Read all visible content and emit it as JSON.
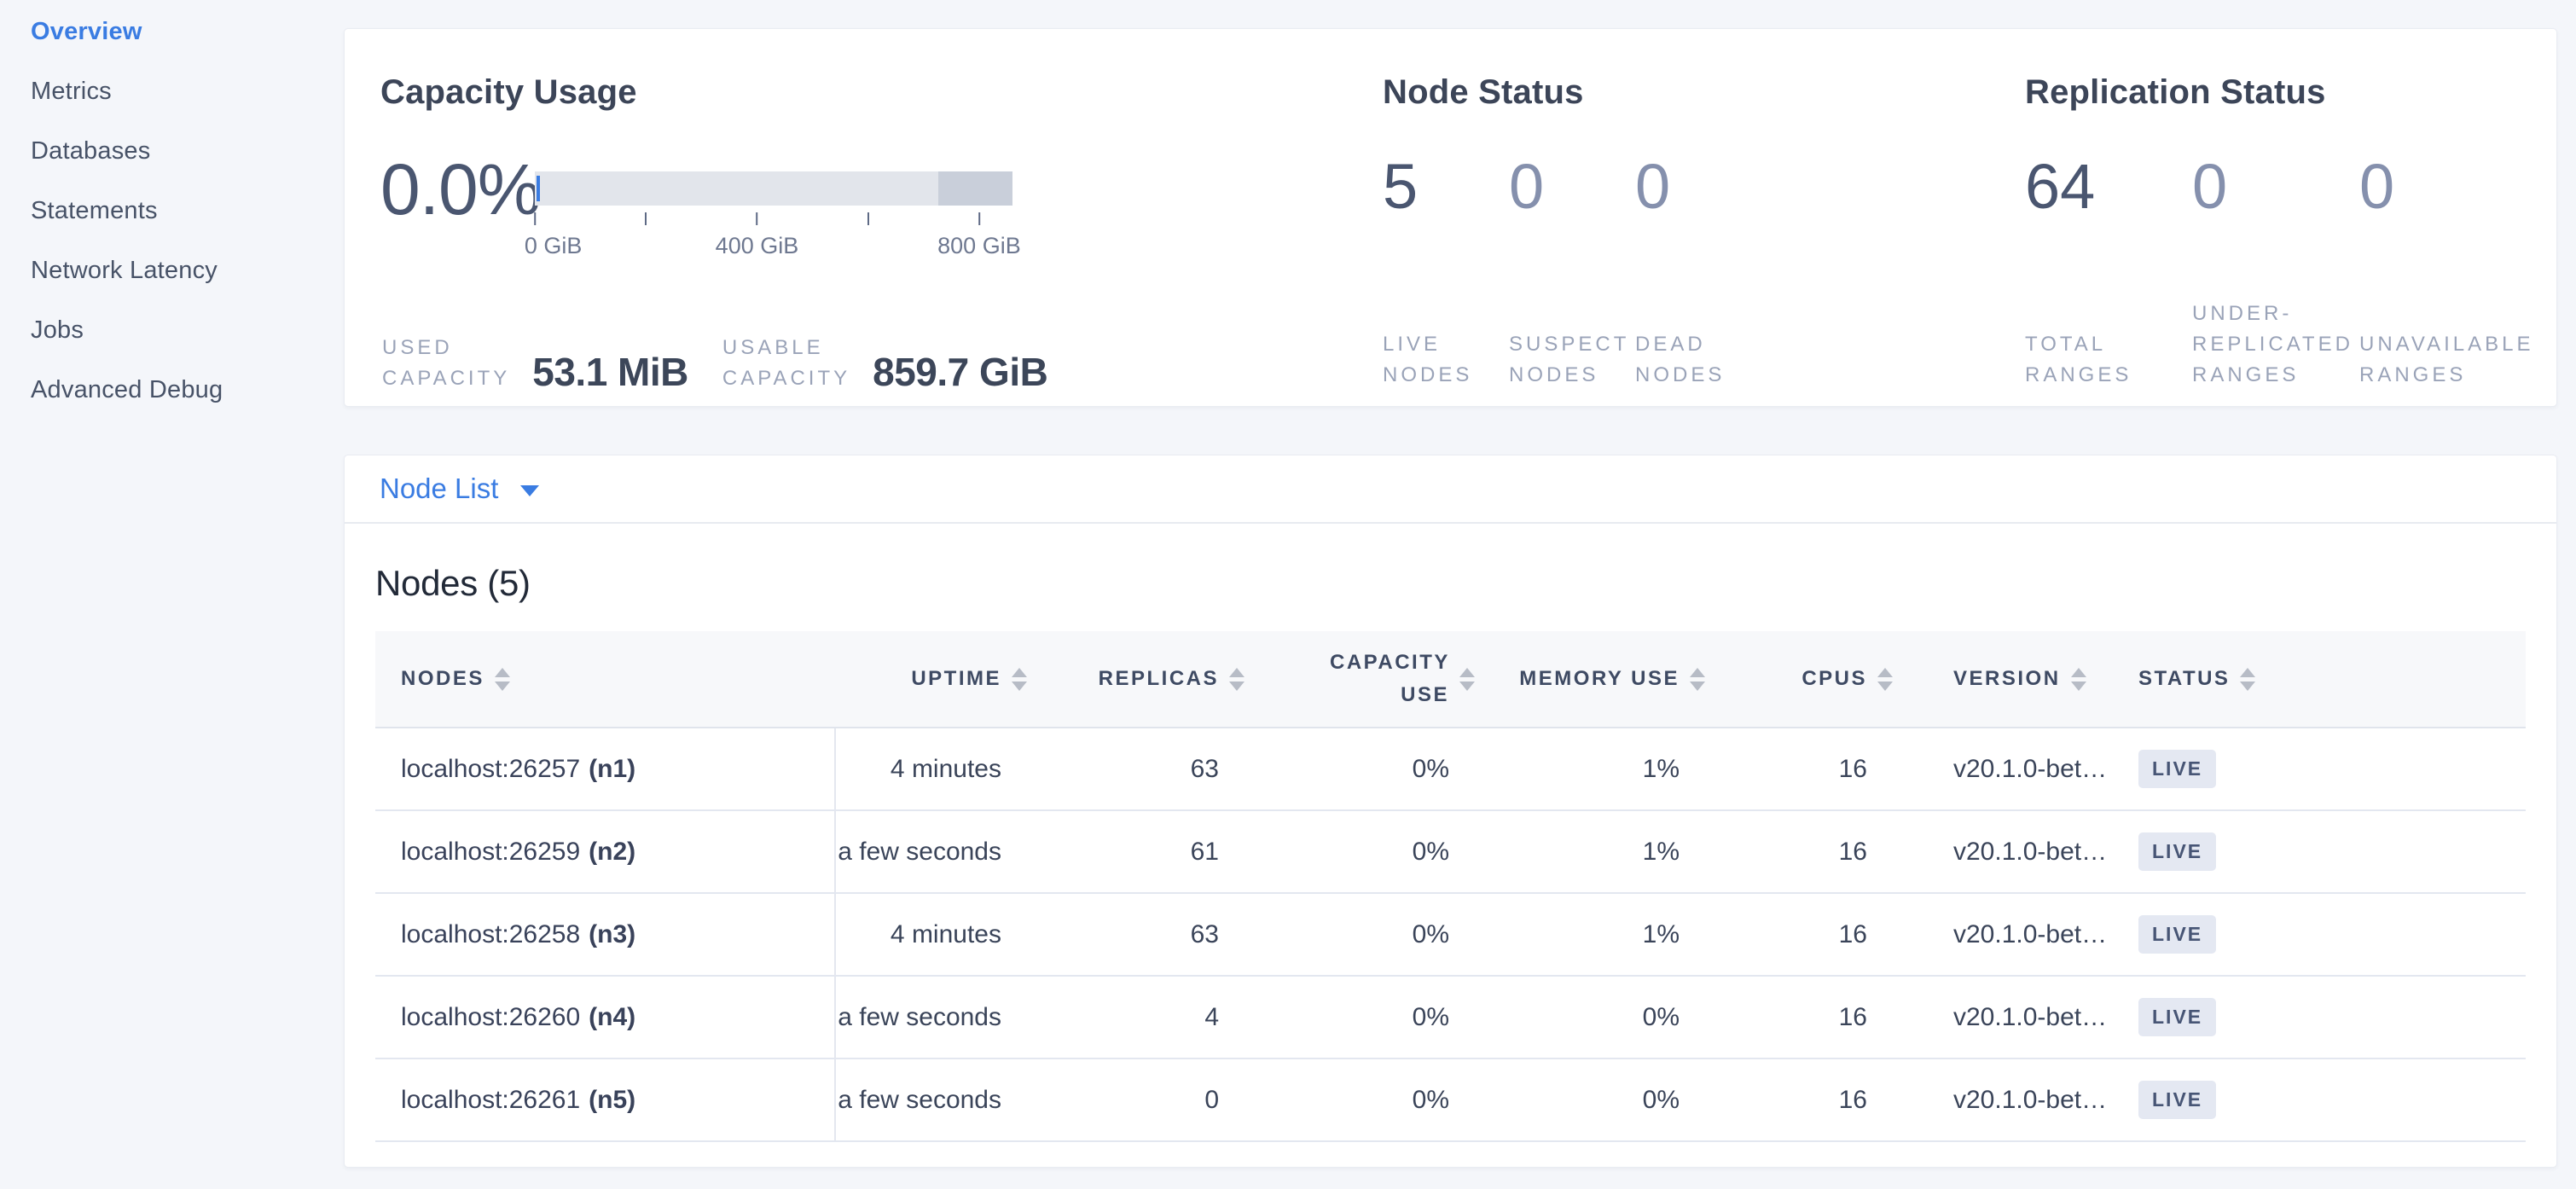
{
  "sidebar": {
    "items": [
      {
        "label": "Overview",
        "active": true
      },
      {
        "label": "Metrics",
        "active": false
      },
      {
        "label": "Databases",
        "active": false
      },
      {
        "label": "Statements",
        "active": false
      },
      {
        "label": "Network Latency",
        "active": false
      },
      {
        "label": "Jobs",
        "active": false
      },
      {
        "label": "Advanced Debug",
        "active": false
      }
    ]
  },
  "capacity": {
    "title": "Capacity Usage",
    "percent": "0.0%",
    "used_label": "USED\nCAPACITY",
    "used_value": "53.1 MiB",
    "usable_label": "USABLE\nCAPACITY",
    "usable_value": "859.7 GiB",
    "bar": {
      "max_gib": 860,
      "used_fraction_pct": 0.006,
      "dark_segment_start_pct": 84.5,
      "light_color": "#e2e5eb",
      "dark_color": "#c9cfda",
      "used_marker_color": "#3a7ce2",
      "ticks": [
        {
          "value": 0,
          "label": "0 GiB"
        },
        {
          "value": 200,
          "label": ""
        },
        {
          "value": 400,
          "label": "400 GiB"
        },
        {
          "value": 600,
          "label": ""
        },
        {
          "value": 800,
          "label": "800 GiB"
        }
      ]
    }
  },
  "node_status": {
    "title": "Node Status",
    "stats": [
      {
        "value": "5",
        "label": "LIVE\nNODES",
        "muted": false
      },
      {
        "value": "0",
        "label": "SUSPECT\nNODES",
        "muted": true
      },
      {
        "value": "0",
        "label": "DEAD\nNODES",
        "muted": true
      }
    ]
  },
  "replication_status": {
    "title": "Replication Status",
    "stats": [
      {
        "value": "64",
        "label": "TOTAL\nRANGES",
        "muted": false
      },
      {
        "value": "0",
        "label": "UNDER-\nREPLICATED\nRANGES",
        "muted": true
      },
      {
        "value": "0",
        "label": "UNAVAILABLE\nRANGES",
        "muted": true
      }
    ]
  },
  "node_list": {
    "label": "Node List"
  },
  "nodes_table": {
    "title": "Nodes (5)",
    "columns": [
      {
        "key": "nodes",
        "label": "NODES",
        "align": "left"
      },
      {
        "key": "uptime",
        "label": "UPTIME",
        "align": "right"
      },
      {
        "key": "replicas",
        "label": "REPLICAS",
        "align": "right"
      },
      {
        "key": "capacity_use",
        "label": "CAPACITY USE",
        "align": "right"
      },
      {
        "key": "memory_use",
        "label": "MEMORY USE",
        "align": "right"
      },
      {
        "key": "cpus",
        "label": "CPUS",
        "align": "right"
      },
      {
        "key": "version",
        "label": "VERSION",
        "align": "left"
      },
      {
        "key": "status",
        "label": "STATUS",
        "align": "left"
      }
    ],
    "rows": [
      {
        "address": "localhost:26257",
        "node_id": "(n1)",
        "uptime": "4 minutes",
        "replicas": "63",
        "capacity_use": "0%",
        "memory_use": "1%",
        "cpus": "16",
        "version": "v20.1.0-bet…",
        "status": "LIVE"
      },
      {
        "address": "localhost:26259",
        "node_id": "(n2)",
        "uptime": "a few seconds",
        "replicas": "61",
        "capacity_use": "0%",
        "memory_use": "1%",
        "cpus": "16",
        "version": "v20.1.0-bet…",
        "status": "LIVE"
      },
      {
        "address": "localhost:26258",
        "node_id": "(n3)",
        "uptime": "4 minutes",
        "replicas": "63",
        "capacity_use": "0%",
        "memory_use": "1%",
        "cpus": "16",
        "version": "v20.1.0-bet…",
        "status": "LIVE"
      },
      {
        "address": "localhost:26260",
        "node_id": "(n4)",
        "uptime": "a few seconds",
        "replicas": "4",
        "capacity_use": "0%",
        "memory_use": "0%",
        "cpus": "16",
        "version": "v20.1.0-bet…",
        "status": "LIVE"
      },
      {
        "address": "localhost:26261",
        "node_id": "(n5)",
        "uptime": "a few seconds",
        "replicas": "0",
        "capacity_use": "0%",
        "memory_use": "0%",
        "cpus": "16",
        "version": "v20.1.0-bet…",
        "status": "LIVE"
      }
    ]
  },
  "colors": {
    "accent_blue": "#3a7ce2",
    "page_background": "#f4f6fa",
    "primary_number": "#4a5670",
    "muted_number": "#8590ad",
    "badge_background": "#e4e8f2"
  }
}
